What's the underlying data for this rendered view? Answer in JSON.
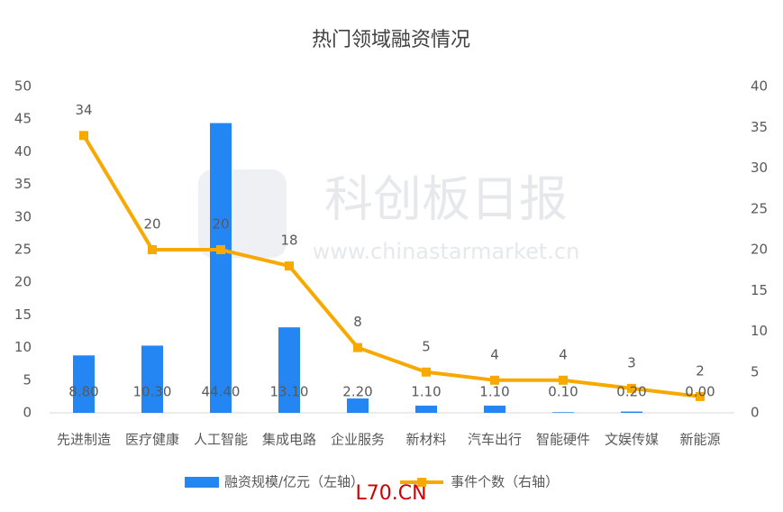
{
  "chart_data": {
    "type": "bar-line",
    "title": "热门领域融资情况",
    "categories": [
      "先进制造",
      "医疗健康",
      "人工智能",
      "集成电路",
      "企业服务",
      "新材料",
      "汽车出行",
      "智能硬件",
      "文娱传媒",
      "新能源"
    ],
    "series": [
      {
        "name": "融资规模/亿元（左轴）",
        "type": "bar",
        "color": "#2486f2",
        "values": [
          8.8,
          10.3,
          44.4,
          13.1,
          2.2,
          1.1,
          1.1,
          0.1,
          0.2,
          0.0
        ],
        "value_labels": [
          "8.80",
          "10.30",
          "44.40",
          "13.10",
          "2.20",
          "1.10",
          "1.10",
          "0.10",
          "0.20",
          "0.00"
        ]
      },
      {
        "name": "事件个数（右轴）",
        "type": "line",
        "axis": "y2",
        "color": "#f7a900",
        "values": [
          34,
          20,
          20,
          18,
          8,
          5,
          4,
          4,
          3,
          2
        ]
      }
    ],
    "ylim": [
      0,
      50
    ],
    "yticks": [
      0,
      5,
      10,
      15,
      20,
      25,
      30,
      35,
      40,
      45,
      50
    ],
    "y2lim": [
      0,
      40
    ],
    "y2ticks": [
      0,
      5,
      10,
      15,
      20,
      25,
      30,
      35,
      40
    ],
    "legend": "bottom",
    "annotations": [
      "科创板日报",
      "www.chinastarmarket.cn",
      "L70.CN"
    ]
  }
}
